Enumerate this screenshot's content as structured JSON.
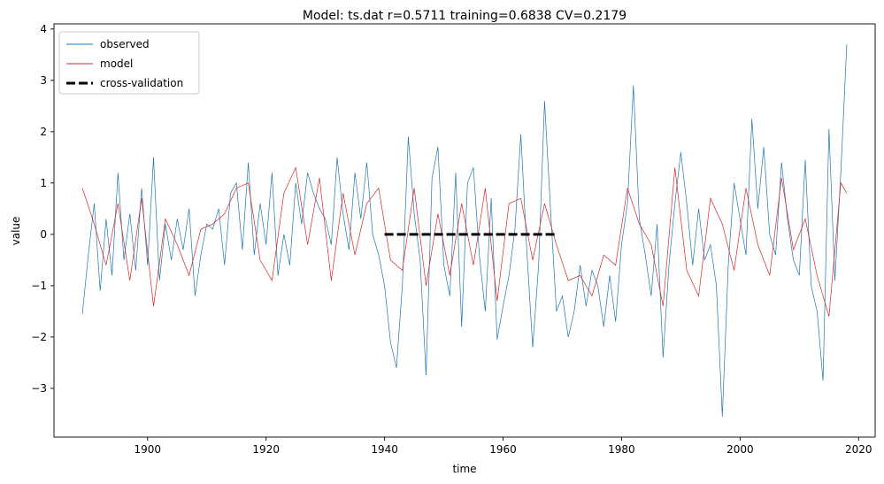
{
  "chart_data": {
    "type": "line",
    "title": "Model: ts.dat  r=0.5711  training=0.6838  CV=0.2179",
    "xlabel": "time",
    "ylabel": "value",
    "xlim": [
      1884.2,
      2022.8
    ],
    "ylim": [
      -3.95,
      4.1
    ],
    "xticks": [
      1900,
      1920,
      1940,
      1960,
      1980,
      2000,
      2020
    ],
    "yticks": [
      -3,
      -2,
      -1,
      0,
      1,
      2,
      3,
      4
    ],
    "grid": false,
    "legend_position": "top-left",
    "colors": {
      "observed": "#1f77b4",
      "model": "#d62728",
      "cv": "#000000"
    },
    "legend": [
      {
        "name": "observed",
        "style": "thin-blue"
      },
      {
        "name": "model",
        "style": "thin-red"
      },
      {
        "name": "cross-validation",
        "style": "thick-black-dashed"
      }
    ],
    "series": [
      {
        "name": "observed",
        "x": [
          1889.0,
          1890.0,
          1891.0,
          1892.0,
          1893.0,
          1894.0,
          1895.0,
          1896.0,
          1897.0,
          1898.0,
          1899.0,
          1900.0,
          1901.0,
          1902.0,
          1903.0,
          1904.0,
          1905.0,
          1906.0,
          1907.0,
          1908.0,
          1909.0,
          1910.0,
          1911.0,
          1912.0,
          1913.0,
          1914.0,
          1915.0,
          1916.0,
          1917.0,
          1918.0,
          1919.0,
          1920.0,
          1921.0,
          1922.0,
          1923.0,
          1924.0,
          1925.0,
          1926.0,
          1927.0,
          1928.0,
          1929.0,
          1930.0,
          1931.0,
          1932.0,
          1933.0,
          1934.0,
          1935.0,
          1936.0,
          1937.0,
          1938.0,
          1939.0,
          1940.0,
          1941.0,
          1942.0,
          1943.0,
          1944.0,
          1945.0,
          1946.0,
          1947.0,
          1948.0,
          1949.0,
          1950.0,
          1951.0,
          1952.0,
          1953.0,
          1954.0,
          1955.0,
          1956.0,
          1957.0,
          1958.0,
          1959.0,
          1960.0,
          1961.0,
          1962.0,
          1963.0,
          1964.0,
          1965.0,
          1966.0,
          1967.0,
          1968.0,
          1969.0,
          1970.0,
          1971.0,
          1972.0,
          1973.0,
          1974.0,
          1975.0,
          1976.0,
          1977.0,
          1978.0,
          1979.0,
          1980.0,
          1981.0,
          1982.0,
          1983.0,
          1984.0,
          1985.0,
          1986.0,
          1987.0,
          1988.0,
          1989.0,
          1990.0,
          1991.0,
          1992.0,
          1993.0,
          1994.0,
          1995.0,
          1996.0,
          1997.0,
          1998.0,
          1999.0,
          2000.0,
          2001.0,
          2002.0,
          2003.0,
          2004.0,
          2005.0,
          2006.0,
          2007.0,
          2008.0,
          2009.0,
          2010.0,
          2011.0,
          2012.0,
          2013.0,
          2014.0,
          2015.0,
          2016.0,
          2017.0,
          2018.0
        ],
        "values": [
          -1.55,
          -0.4,
          0.6,
          -1.1,
          0.3,
          -0.8,
          1.2,
          -0.5,
          0.4,
          -0.7,
          0.9,
          -0.6,
          1.5,
          -0.9,
          0.2,
          -0.5,
          0.3,
          -0.3,
          0.5,
          -1.2,
          -0.4,
          0.2,
          0.1,
          0.5,
          -0.6,
          0.8,
          1.0,
          -0.3,
          1.4,
          -0.4,
          0.6,
          -0.2,
          1.2,
          -0.8,
          0.0,
          -0.6,
          1.0,
          0.2,
          1.2,
          0.8,
          0.5,
          0.3,
          -0.2,
          1.5,
          0.4,
          -0.3,
          1.2,
          0.3,
          1.4,
          0.0,
          -0.4,
          -1.0,
          -2.1,
          -2.6,
          -1.0,
          1.9,
          0.4,
          -0.5,
          -2.75,
          1.1,
          1.7,
          -0.6,
          -1.2,
          1.2,
          -1.8,
          1.0,
          1.3,
          -0.4,
          -1.5,
          0.7,
          -2.05,
          -1.4,
          -0.8,
          0.1,
          1.95,
          -0.3,
          -2.2,
          -0.6,
          2.6,
          0.5,
          -1.5,
          -1.2,
          -2.0,
          -1.5,
          -0.6,
          -1.4,
          -0.7,
          -1.0,
          -1.8,
          -0.8,
          -1.7,
          -0.2,
          0.6,
          2.9,
          0.3,
          -0.4,
          -1.2,
          0.2,
          -2.4,
          -0.6,
          0.6,
          1.6,
          0.6,
          -0.6,
          0.5,
          -0.5,
          -0.2,
          -1.0,
          -3.55,
          -0.6,
          1.0,
          0.3,
          -0.4,
          2.25,
          0.5,
          1.7,
          0.0,
          -0.4,
          1.4,
          0.3,
          -0.5,
          -0.8,
          1.45,
          -1.0,
          -1.5,
          -2.85,
          2.05,
          -0.9,
          1.2,
          3.7
        ]
      },
      {
        "name": "model",
        "x": [
          1889.0,
          1891.0,
          1893.0,
          1895.0,
          1897.0,
          1899.0,
          1901.0,
          1903.0,
          1905.0,
          1907.0,
          1909.0,
          1911.0,
          1913.0,
          1915.0,
          1917.0,
          1919.0,
          1921.0,
          1923.0,
          1925.0,
          1927.0,
          1929.0,
          1931.0,
          1933.0,
          1935.0,
          1937.0,
          1939.0,
          1941.0,
          1943.0,
          1945.0,
          1947.0,
          1949.0,
          1951.0,
          1953.0,
          1955.0,
          1957.0,
          1959.0,
          1961.0,
          1963.0,
          1965.0,
          1967.0,
          1969.0,
          1971.0,
          1973.0,
          1975.0,
          1977.0,
          1979.0,
          1981.0,
          1983.0,
          1985.0,
          1987.0,
          1989.0,
          1991.0,
          1993.0,
          1995.0,
          1997.0,
          1999.0,
          2001.0,
          2003.0,
          2005.0,
          2007.0,
          2009.0,
          2011.0,
          2013.0,
          2015.0,
          2017.0,
          2018.0
        ],
        "values": [
          0.9,
          0.2,
          -0.6,
          0.6,
          -0.9,
          0.7,
          -1.4,
          0.3,
          -0.2,
          -0.8,
          0.1,
          0.2,
          0.4,
          0.9,
          1.0,
          -0.5,
          -0.9,
          0.8,
          1.3,
          -0.2,
          1.1,
          -0.9,
          0.8,
          -0.4,
          0.6,
          0.9,
          -0.5,
          -0.7,
          0.9,
          -1.0,
          0.4,
          -0.8,
          0.6,
          -0.6,
          0.9,
          -1.3,
          0.6,
          0.7,
          -0.5,
          0.6,
          -0.2,
          -0.9,
          -0.8,
          -1.2,
          -0.4,
          -0.6,
          0.9,
          0.2,
          -0.2,
          -1.4,
          1.3,
          -0.7,
          -1.2,
          0.7,
          0.2,
          -0.7,
          0.9,
          -0.2,
          -0.8,
          1.1,
          -0.3,
          0.3,
          -0.8,
          -1.6,
          1.0,
          0.8
        ]
      },
      {
        "name": "cross-validation",
        "x": [
          1940.0,
          1969.0
        ],
        "values": [
          0.0,
          0.0
        ]
      }
    ]
  }
}
